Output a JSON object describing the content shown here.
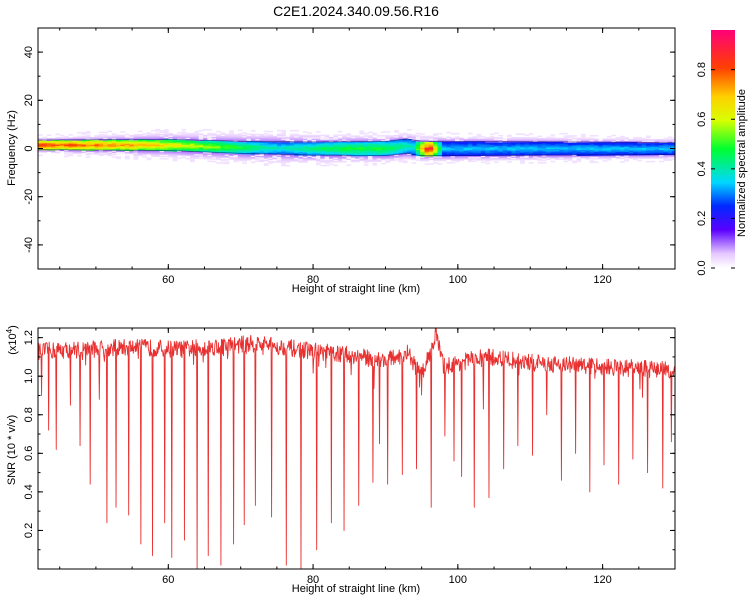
{
  "title": "C2E1.2024.340.09.56.R16",
  "chart_data": [
    {
      "type": "heatmap",
      "xlabel": "Height of straight line (km)",
      "ylabel": "Frequency (Hz)",
      "xlim": [
        42,
        130
      ],
      "ylim": [
        -50,
        50
      ],
      "xticks": [
        60,
        80,
        100,
        120
      ],
      "yticks": [
        40,
        20,
        0,
        -20,
        -40
      ],
      "colorbar": {
        "label": "Normalized spectral amplitude",
        "range": [
          0,
          0.96
        ],
        "ticks": [
          "0.8",
          "0.6",
          "0.4",
          "0.2",
          "0.0"
        ]
      },
      "band": {
        "center_freq_hz": [
          [
            42,
            1.5
          ],
          [
            60,
            1.5
          ],
          [
            70,
            0.5
          ],
          [
            80,
            0
          ],
          [
            90,
            0
          ],
          [
            93,
            1
          ],
          [
            95,
            0
          ],
          [
            130,
            0
          ]
        ],
        "halfwidth_hz": [
          [
            42,
            2
          ],
          [
            70,
            2.5
          ],
          [
            92,
            3
          ],
          [
            96,
            3
          ],
          [
            130,
            2.5
          ]
        ],
        "halo_halfwidth_hz": [
          [
            42,
            3
          ],
          [
            60,
            5
          ],
          [
            75,
            6
          ],
          [
            100,
            5
          ],
          [
            130,
            4
          ]
        ],
        "peak_amplitude": [
          [
            42,
            0.85
          ],
          [
            55,
            0.75
          ],
          [
            65,
            0.6
          ],
          [
            75,
            0.4
          ],
          [
            85,
            0.5
          ],
          [
            90,
            0.5
          ],
          [
            94,
            0.4
          ],
          [
            96,
            0.95
          ],
          [
            98,
            0.35
          ],
          [
            130,
            0.35
          ]
        ]
      }
    },
    {
      "type": "line",
      "xlabel": "Height of straight line (km)",
      "ylabel": "SNR (10 * v/v)",
      "scale_note": "(x10",
      "scale_exp": "4",
      "scale_close": ")",
      "xlim": [
        42,
        130
      ],
      "ylim": [
        0,
        1.25
      ],
      "xticks": [
        60,
        80,
        100,
        120
      ],
      "yticks": [
        "0.2",
        "0.4",
        "0.6",
        "0.8",
        "1.0",
        "1.2"
      ],
      "color": "#e83030",
      "baseline": [
        [
          42,
          1.13
        ],
        [
          55,
          1.15
        ],
        [
          62,
          1.14
        ],
        [
          72,
          1.17
        ],
        [
          80,
          1.13
        ],
        [
          85,
          1.11
        ],
        [
          90,
          1.08
        ],
        [
          93,
          1.12
        ],
        [
          95,
          1.0
        ],
        [
          97,
          1.22
        ],
        [
          98,
          1.05
        ],
        [
          100,
          1.07
        ],
        [
          104,
          1.1
        ],
        [
          110,
          1.07
        ],
        [
          120,
          1.05
        ],
        [
          130,
          1.03
        ]
      ],
      "dips": [
        [
          42.5,
          0.9
        ],
        [
          43.5,
          0.72
        ],
        [
          44.5,
          0.62
        ],
        [
          46.5,
          0.85
        ],
        [
          47.8,
          0.64
        ],
        [
          49.2,
          0.44
        ],
        [
          50.5,
          0.88
        ],
        [
          51.5,
          0.24
        ],
        [
          52.8,
          0.32
        ],
        [
          54.5,
          0.28
        ],
        [
          56.2,
          0.13
        ],
        [
          57.8,
          0.07
        ],
        [
          59.5,
          0.24
        ],
        [
          60.5,
          0.06
        ],
        [
          62.2,
          0.15
        ],
        [
          64.0,
          0.0
        ],
        [
          65.5,
          0.07
        ],
        [
          67.3,
          0.02
        ],
        [
          69.0,
          0.13
        ],
        [
          70.5,
          0.23
        ],
        [
          72.0,
          0.33
        ],
        [
          74.3,
          0.27
        ],
        [
          76.3,
          0.02
        ],
        [
          78.3,
          0.0
        ],
        [
          80.5,
          0.1
        ],
        [
          82.5,
          0.24
        ],
        [
          84.3,
          0.2
        ],
        [
          86.3,
          0.33
        ],
        [
          88.3,
          0.45
        ],
        [
          89.2,
          0.65
        ],
        [
          90.3,
          0.44
        ],
        [
          92.3,
          0.49
        ],
        [
          94.3,
          0.52
        ],
        [
          96.3,
          0.32
        ],
        [
          98.2,
          0.69
        ],
        [
          99.5,
          0.56
        ],
        [
          100.5,
          0.48
        ],
        [
          102.3,
          0.32
        ],
        [
          103.5,
          0.83
        ],
        [
          104.3,
          0.37
        ],
        [
          106.3,
          0.52
        ],
        [
          108.3,
          0.64
        ],
        [
          110.3,
          0.59
        ],
        [
          112.3,
          0.8
        ],
        [
          114.3,
          0.46
        ],
        [
          116.3,
          0.6
        ],
        [
          118.2,
          0.4
        ],
        [
          120.2,
          0.54
        ],
        [
          122.2,
          0.44
        ],
        [
          124.2,
          0.57
        ],
        [
          125.5,
          0.89
        ],
        [
          126.2,
          0.5
        ],
        [
          128.3,
          0.42
        ],
        [
          129.5,
          0.66
        ]
      ]
    }
  ]
}
